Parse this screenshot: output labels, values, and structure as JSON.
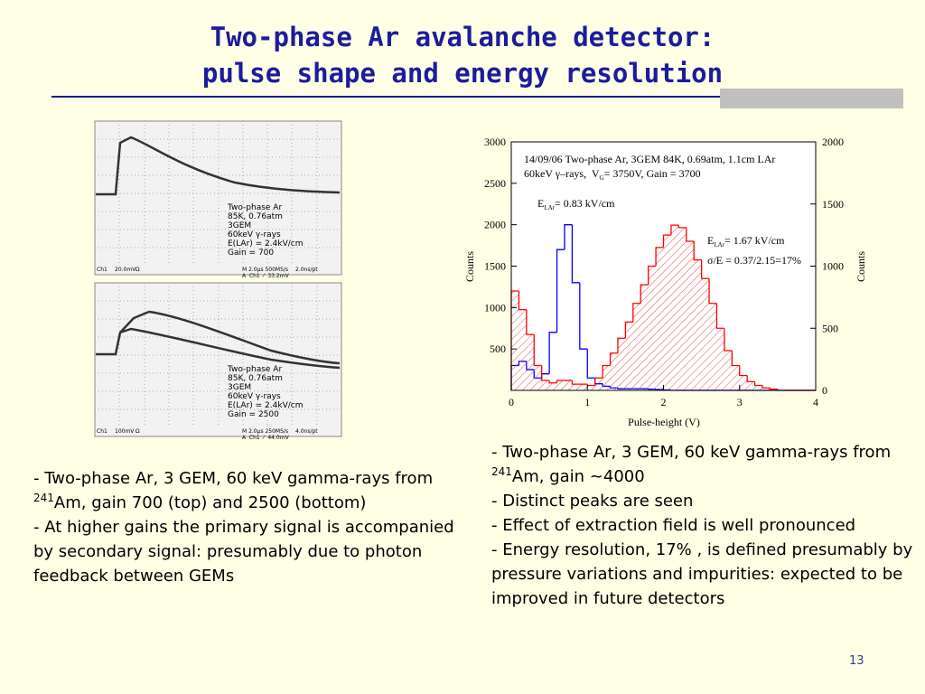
{
  "slide": {
    "title": [
      "Two-phase Ar avalanche detector:",
      "pulse shape and energy resolution"
    ],
    "page_number": "13"
  },
  "scopes": [
    {
      "labels": [
        "Two-phase Ar",
        "85K, 0.76atm",
        "3GEM",
        "60keV γ-rays",
        "E(LAr) = 2.4kV/cm",
        "Gain = 700"
      ],
      "footer": [
        "Ch1",
        "20.0mV",
        "Ω",
        "M 2.0µs 500MS/s",
        "2.0ns/pt",
        "A  Ch1  ⁄  33.2mV"
      ]
    },
    {
      "labels": [
        "Two-phase Ar",
        "85K, 0.76atm",
        "3GEM",
        "60keV γ-rays",
        "E(LAr) = 2.4kV/cm",
        "Gain = 2500"
      ],
      "footer": [
        "Ch1",
        "100mV",
        "Ω",
        "M 2.0µs 250MS/s",
        "4.0ns/pt",
        "A  Ch1  ⁄  44.0mV"
      ]
    }
  ],
  "left_notes": [
    {
      "before": "- Two-phase Ar, 3 GEM, 60 keV gamma-rays from ",
      "sup": "241",
      "after": "Am, gain 700 (top) and 2500 (bottom)"
    },
    {
      "before": "- At higher gains the primary signal is accompanied by secondary signal: presumably due to photon feedback between GEMs"
    }
  ],
  "right_notes": [
    {
      "before": "- Two-phase Ar, 3 GEM, 60 keV gamma-rays from ",
      "sup": "241",
      "after": "Am, gain ~4000"
    },
    {
      "before": "- Distinct peaks are seen"
    },
    {
      "before": "- Effect of extraction field is well pronounced"
    },
    {
      "before": "- Energy resolution, 17% , is defined presumably by pressure variations and impurities: expected to be improved in future detectors"
    }
  ],
  "chart_data": {
    "type": "histogram",
    "x_label": "Pulse-height (V)",
    "y_label": "Counts",
    "y2_label": "Counts",
    "annotations": [
      [
        "14/09/06 Two-phase Ar, 3GEM 84K, 0.69atm, 1.1cm LAr"
      ],
      [
        "60keV γ–rays,  V",
        "G",
        "= 3750V, Gain = 3700"
      ],
      [
        "E",
        "LAr",
        "= 0.83 kV/cm"
      ],
      [
        "E",
        "LAr",
        "= 1.67 kV/cm"
      ],
      [
        "σ/E = 0.37/2.15=17%"
      ]
    ],
    "bins": [
      0,
      0.1,
      0.2,
      0.3,
      0.4,
      0.5,
      0.6,
      0.7,
      0.8,
      0.9,
      1,
      1.1,
      1.2,
      1.3,
      1.4,
      1.5,
      1.6,
      1.7,
      1.8,
      1.9,
      2,
      2.1,
      2.2,
      2.3,
      2.4,
      2.5,
      2.6,
      2.7,
      2.8,
      2.9,
      3,
      3.1,
      3.2,
      3.3,
      3.4,
      3.5,
      3.6,
      3.7,
      3.8,
      3.9,
      4
    ],
    "series": [
      {
        "color": "#0000ff",
        "axis": "y",
        "hatch": false,
        "values": [
          300,
          350,
          250,
          150,
          200,
          700,
          1700,
          2000,
          1300,
          500,
          150,
          80,
          50,
          30,
          20,
          20,
          20,
          20,
          15,
          10,
          5,
          0,
          0,
          0,
          0,
          0,
          0,
          0,
          0,
          0,
          0,
          0,
          0,
          0,
          0,
          0,
          0,
          0,
          0,
          0
        ]
      },
      {
        "color": "#ff0000",
        "axis": "y2",
        "hatch": true,
        "values": [
          800,
          650,
          450,
          200,
          80,
          60,
          80,
          80,
          50,
          50,
          40,
          100,
          200,
          300,
          420,
          550,
          700,
          850,
          1000,
          1150,
          1250,
          1330,
          1310,
          1200,
          1050,
          900,
          700,
          500,
          320,
          200,
          120,
          70,
          40,
          20,
          10,
          0,
          0,
          0,
          0,
          0
        ]
      }
    ],
    "xlim": [
      0,
      4
    ],
    "xticks": [
      0,
      1,
      2,
      3,
      4
    ],
    "ylim": [
      0,
      3000
    ],
    "yticks": [
      500,
      1000,
      1500,
      2000,
      2500,
      3000
    ],
    "y2lim": [
      0,
      2000
    ],
    "y2ticks": [
      0,
      500,
      1000,
      1500,
      2000
    ],
    "grid": false
  }
}
